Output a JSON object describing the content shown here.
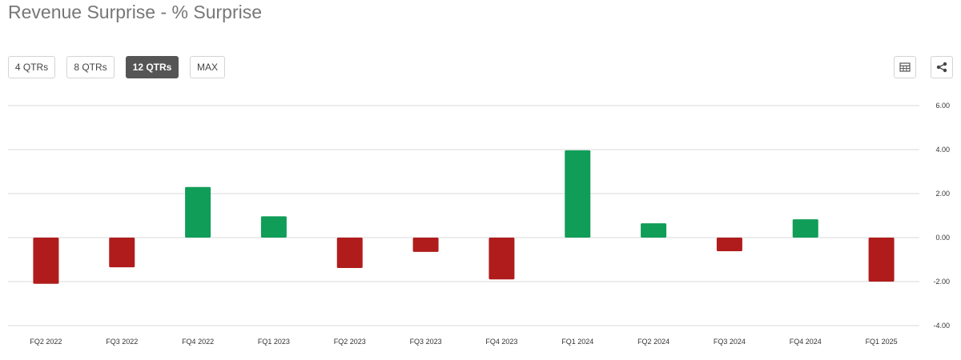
{
  "header": {
    "title": "Revenue Surprise - % Surprise"
  },
  "toolbar": {
    "ranges": [
      "4 QTRs",
      "8 QTRs",
      "12 QTRs",
      "MAX"
    ],
    "active_range": "12 QTRs",
    "table_icon": "table-icon",
    "share_icon": "share-icon"
  },
  "colors": {
    "positive": "#109d58",
    "negative": "#b01c1c",
    "active_button": "#555555"
  },
  "chart_data": {
    "type": "bar",
    "title": "Revenue Surprise - % Surprise",
    "xlabel": "",
    "ylabel": "",
    "categories": [
      "FQ2 2022",
      "FQ3 2022",
      "FQ4 2022",
      "FQ1 2023",
      "FQ2 2023",
      "FQ3 2023",
      "FQ4 2023",
      "FQ1 2024",
      "FQ2 2024",
      "FQ3 2024",
      "FQ4 2024",
      "FQ1 2025"
    ],
    "values": [
      -2.1,
      -1.35,
      2.3,
      0.97,
      -1.38,
      -0.65,
      -1.9,
      3.97,
      0.65,
      -0.62,
      0.83,
      -2.0
    ],
    "ylim": [
      -4,
      6
    ],
    "yticks": [
      "6.00",
      "4.00",
      "2.00",
      "0.00",
      "-2.00",
      "-4.00"
    ],
    "grid": true,
    "legend": "none",
    "y_axis_side": "right"
  }
}
